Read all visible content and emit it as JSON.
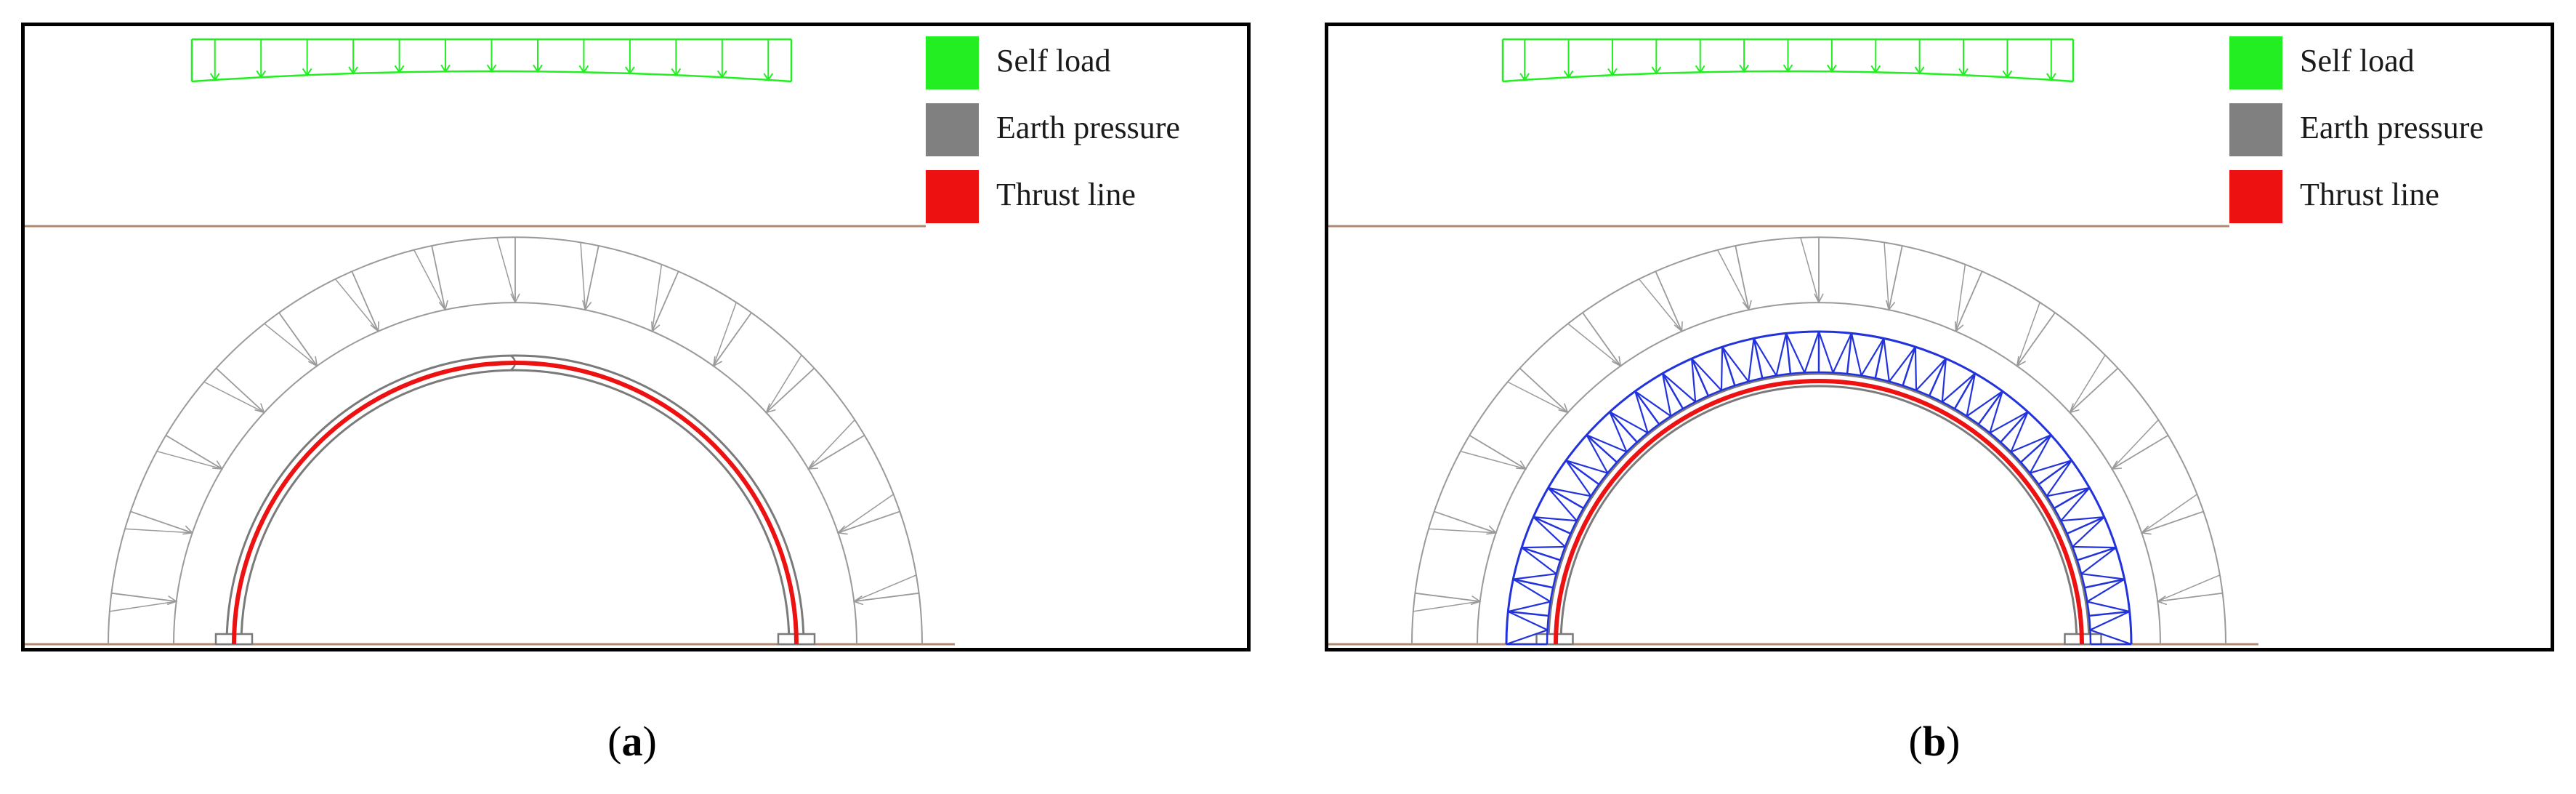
{
  "legend": {
    "items": [
      {
        "label": "Self load",
        "color": "#22ee22"
      },
      {
        "label": "Earth pressure",
        "color": "#808080"
      },
      {
        "label": "Thrust line",
        "color": "#ee1111"
      }
    ]
  },
  "panels": [
    {
      "id": "a",
      "caption_letter": "a",
      "reinforcement": false
    },
    {
      "id": "b",
      "caption_letter": "b",
      "reinforcement": true
    }
  ],
  "colors": {
    "self_load": "#22ee22",
    "earth_pressure_arrows": "#9a9a9a",
    "arch_outline": "#7a7a7a",
    "thrust_line": "#ee1111",
    "reinforcement_truss": "#2233dd",
    "ground_line": "#b08a70"
  }
}
